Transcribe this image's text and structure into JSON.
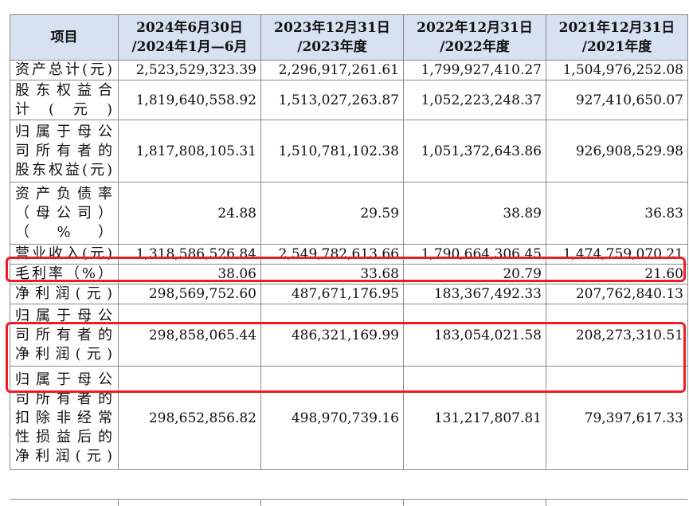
{
  "header": {
    "item_label": "项目",
    "columns": [
      {
        "line1": "2024年6月30日",
        "line2": "/2024年1月—6月"
      },
      {
        "line1": "2023年12月31日",
        "line2": "/2023年度"
      },
      {
        "line1": "2022年12月31日",
        "line2": "/2022年度"
      },
      {
        "line1": "2021年12月31日",
        "line2": "/2021年度"
      }
    ]
  },
  "rows": [
    {
      "label_lines": [
        "资产总计(元)"
      ],
      "values": [
        "2,523,529,323.39",
        "2,296,917,261.61",
        "1,799,927,410.27",
        "1,504,976,252.08"
      ]
    },
    {
      "label_lines": [
        "股东权益合",
        "计(元)"
      ],
      "values": [
        "1,819,640,558.92",
        "1,513,027,263.87",
        "1,052,223,248.37",
        "927,410,650.07"
      ]
    },
    {
      "label_lines": [
        "归属于母公",
        "司所有者的",
        "股东权益(元)"
      ],
      "values": [
        "1,817,808,105.31",
        "1,510,781,102.38",
        "1,051,372,643.86",
        "926,908,529.98"
      ]
    },
    {
      "label_lines": [
        "资产负债率",
        "（母公司）",
        "（%）"
      ],
      "values": [
        "24.88",
        "29.59",
        "38.89",
        "36.83"
      ]
    },
    {
      "label_lines": [
        "营业收入(元)"
      ],
      "values": [
        "1,318,586,526.84",
        "2,549,782,613.66",
        "1,790,664,306.45",
        "1,474,759,070.21"
      ]
    },
    {
      "label_lines": [
        "毛利率（%）"
      ],
      "values": [
        "38.06",
        "33.68",
        "20.79",
        "21.60"
      ]
    },
    {
      "label_lines": [
        "净利润(元)"
      ],
      "values": [
        "298,569,752.60",
        "487,671,176.95",
        "183,367,492.33",
        "207,762,840.13"
      ]
    },
    {
      "label_lines": [
        "归属于母公",
        "司所有者的",
        "净利润(元)"
      ],
      "values": [
        "298,858,065.44",
        "486,321,169.99",
        "183,054,021.58",
        "208,273,310.51"
      ]
    },
    {
      "label_lines": [
        "归属于母公",
        "司所有者的",
        "扣除非经常",
        "性损益后的",
        "净利润(元)"
      ],
      "values": [
        "298,652,856.82",
        "498,970,739.16",
        "131,217,807.81",
        "79,397,617.33"
      ]
    }
  ],
  "highlight_color": "#ee1c25",
  "header_bg_color": "#d6e2f1"
}
